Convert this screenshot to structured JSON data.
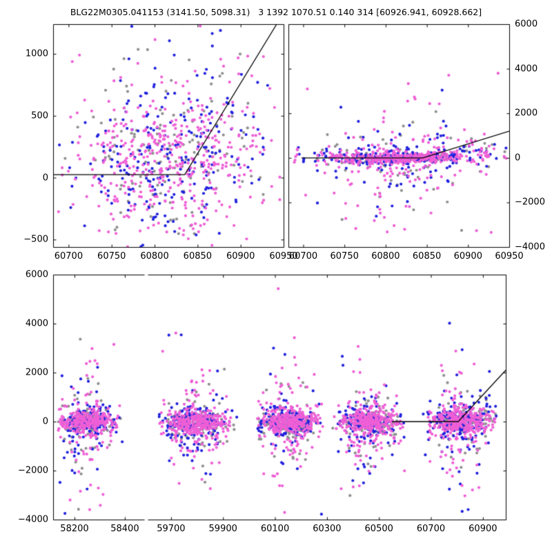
{
  "title": "BLG22M0305.041153 (3141.50, 5098.31)   3 1392 1070.51 0.140 314 [60926.941, 60928.662]",
  "colors": {
    "background": "#ffffff",
    "frame": "#000000",
    "model_line": "#000000",
    "points_pink": "#EE5FD6",
    "points_blue": "#2222DD",
    "points_gray": "#909090"
  },
  "chart_data": {
    "type": "scatter",
    "marker_radius": 2.1,
    "point_color_order": [
      "gray",
      "blue",
      "pink"
    ],
    "panels": [
      {
        "name": "top-left",
        "x_range": [
          60682,
          60950
        ],
        "y_range": [
          -560,
          1240
        ],
        "x_ticks": [
          60700,
          60750,
          60800,
          60850,
          60900,
          60950
        ],
        "x_tick_labels": [
          "60700",
          "60750",
          "60800",
          "60850",
          "60900",
          "60950"
        ],
        "y_ticks": [
          -500,
          0,
          500,
          1000
        ],
        "y_tick_labels": [
          "−500",
          "0",
          "500",
          "1000"
        ],
        "y_label_side": "left",
        "model_line": [
          [
            60682,
            25
          ],
          [
            60835,
            25
          ],
          [
            60942,
            1240
          ]
        ],
        "clusters": [
          {
            "n": 820,
            "x_mean": 60818,
            "x_sd": 55,
            "x_min": 60688,
            "x_max": 60948,
            "components": [
              {
                "frac": 0.58,
                "mean": 110,
                "sd": 240
              },
              {
                "frac": 0.42,
                "mean": 180,
                "sd": 500
              }
            ],
            "trend_after": 60835,
            "trend_slope": 10,
            "color_weights": [
              0.54,
              0.31,
              0.15
            ]
          }
        ]
      },
      {
        "name": "top-right",
        "x_range": [
          60682,
          60950
        ],
        "y_range": [
          -4000,
          6000
        ],
        "x_ticks": [
          60700,
          60750,
          60800,
          60850,
          60900,
          60950
        ],
        "x_tick_labels": [
          "60700",
          "60750",
          "60800",
          "60850",
          "60900",
          "60950"
        ],
        "y_ticks": [
          -4000,
          -2000,
          0,
          2000,
          4000,
          6000
        ],
        "y_tick_labels": [
          "−4000",
          "−2000",
          "0",
          "2000",
          "4000",
          "6000"
        ],
        "y_label_side": "right",
        "model_line": [
          [
            60698,
            0
          ],
          [
            60845,
            0
          ],
          [
            60950,
            1200
          ]
        ],
        "clusters": [
          {
            "n": 880,
            "x_mean": 60820,
            "x_sd": 55,
            "x_min": 60688,
            "x_max": 60948,
            "components": [
              {
                "frac": 0.6,
                "mean": 0,
                "sd": 135
              },
              {
                "frac": 0.25,
                "mean": -30,
                "sd": 550
              },
              {
                "frac": 0.13,
                "mean": -250,
                "sd": 1500
              },
              {
                "frac": 0.02,
                "mean": 0,
                "sd": 2500
              }
            ],
            "trend_after": 60845,
            "trend_slope": 8,
            "color_weights": [
              0.54,
              0.31,
              0.15
            ]
          }
        ]
      },
      {
        "name": "bottom-left",
        "x_range": [
          58115,
          58477
        ],
        "y_range": [
          -4000,
          6000
        ],
        "x_ticks": [
          58200,
          58400
        ],
        "x_tick_labels": [
          "58200",
          "58400"
        ],
        "y_ticks": [
          -4000,
          -2000,
          0,
          2000,
          4000,
          6000
        ],
        "y_tick_labels": [
          "−4000",
          "−2000",
          "0",
          "2000",
          "4000",
          "6000"
        ],
        "y_label_side": "left",
        "model_line": null,
        "clusters": [
          {
            "n": 620,
            "x_mean": 58245,
            "x_sd": 55,
            "x_min": 58135,
            "x_max": 58430,
            "components": [
              {
                "frac": 0.655,
                "mean": -20,
                "sd": 240
              },
              {
                "frac": 0.22,
                "mean": -150,
                "sd": 650
              },
              {
                "frac": 0.11,
                "mean": -250,
                "sd": 1500
              },
              {
                "frac": 0.015,
                "mean": 0,
                "sd": 2600
              }
            ],
            "trend_after": null,
            "trend_slope": 0,
            "color_weights": [
              0.52,
              0.29,
              0.19
            ]
          }
        ]
      },
      {
        "name": "bottom-right",
        "x_range": [
          59610,
          60988
        ],
        "y_range": [
          -4000,
          6000
        ],
        "x_ticks": [
          59700,
          59900,
          60100,
          60300,
          60500,
          60700,
          60900
        ],
        "x_tick_labels": [
          "59700",
          "59900",
          "60100",
          "60300",
          "60500",
          "60700",
          "60900"
        ],
        "y_ticks": [
          -4000,
          -2000,
          0,
          2000,
          4000,
          6000
        ],
        "y_tick_labels": [],
        "y_label_side": "none",
        "model_line": [
          [
            60550,
            0
          ],
          [
            60805,
            0
          ],
          [
            60988,
            2100
          ]
        ],
        "clusters": [
          {
            "n": 680,
            "x_mean": 59790,
            "x_sd": 62,
            "x_min": 59650,
            "x_max": 59955,
            "components": [
              {
                "frac": 0.655,
                "mean": -20,
                "sd": 240
              },
              {
                "frac": 0.22,
                "mean": -150,
                "sd": 650
              },
              {
                "frac": 0.11,
                "mean": -250,
                "sd": 1500
              },
              {
                "frac": 0.015,
                "mean": 0,
                "sd": 2600
              }
            ],
            "trend_after": null,
            "trend_slope": 0,
            "color_weights": [
              0.52,
              0.29,
              0.19
            ]
          },
          {
            "n": 660,
            "x_mean": 60150,
            "x_sd": 58,
            "x_min": 60030,
            "x_max": 60290,
            "components": [
              {
                "frac": 0.655,
                "mean": -20,
                "sd": 240
              },
              {
                "frac": 0.22,
                "mean": -150,
                "sd": 650
              },
              {
                "frac": 0.11,
                "mean": -250,
                "sd": 1500
              },
              {
                "frac": 0.015,
                "mean": 0,
                "sd": 2600
              }
            ],
            "trend_after": null,
            "trend_slope": 0,
            "color_weights": [
              0.52,
              0.29,
              0.19
            ]
          },
          {
            "n": 660,
            "x_mean": 60455,
            "x_sd": 60,
            "x_min": 60320,
            "x_max": 60600,
            "components": [
              {
                "frac": 0.655,
                "mean": -20,
                "sd": 240
              },
              {
                "frac": 0.22,
                "mean": -150,
                "sd": 650
              },
              {
                "frac": 0.11,
                "mean": -250,
                "sd": 1500
              },
              {
                "frac": 0.015,
                "mean": 0,
                "sd": 2600
              }
            ],
            "trend_after": null,
            "trend_slope": 0,
            "color_weights": [
              0.52,
              0.29,
              0.19
            ]
          },
          {
            "n": 720,
            "x_mean": 60815,
            "x_sd": 55,
            "x_min": 60665,
            "x_max": 60960,
            "components": [
              {
                "frac": 0.655,
                "mean": -20,
                "sd": 240
              },
              {
                "frac": 0.22,
                "mean": -150,
                "sd": 650
              },
              {
                "frac": 0.11,
                "mean": -250,
                "sd": 1500
              },
              {
                "frac": 0.015,
                "mean": 0,
                "sd": 2600
              }
            ],
            "trend_after": 60845,
            "trend_slope": 8,
            "color_weights": [
              0.52,
              0.29,
              0.19
            ]
          }
        ]
      }
    ]
  }
}
